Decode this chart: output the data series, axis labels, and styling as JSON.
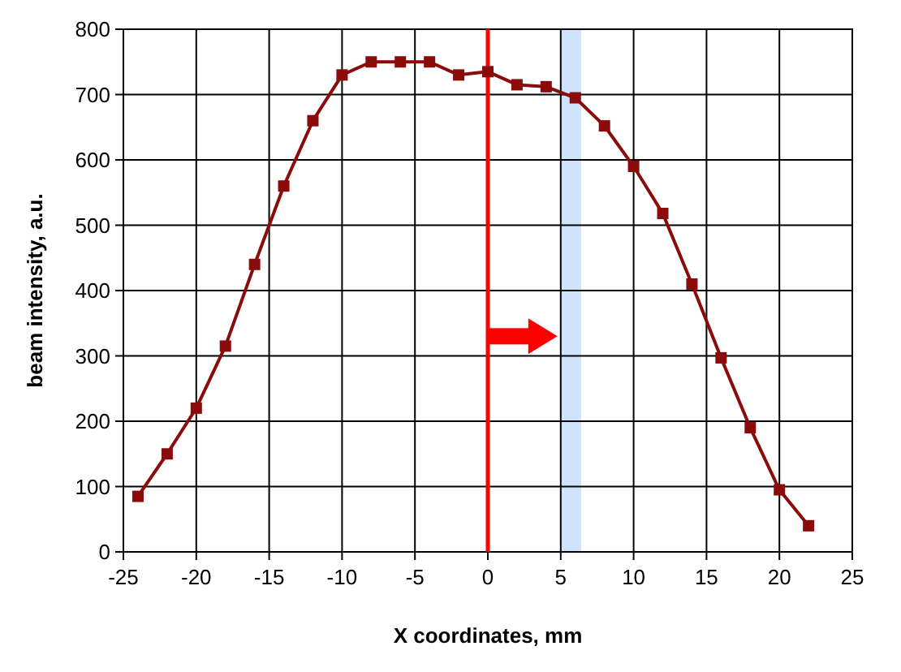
{
  "chart_data": {
    "type": "line",
    "xlabel": "X coordinates, mm",
    "ylabel": "beam intensity, a.u.",
    "x": [
      -24,
      -22,
      -20,
      -18,
      -16,
      -14,
      -12,
      -10,
      -8,
      -6,
      -4,
      -2,
      0,
      2,
      4,
      6,
      8,
      10,
      12,
      14,
      16,
      18,
      20,
      22
    ],
    "series": [
      {
        "color": "#8b0a0a",
        "values": [
          85,
          150,
          220,
          315,
          440,
          560,
          660,
          730,
          750,
          750,
          750,
          730,
          735,
          715,
          712,
          695,
          652,
          590,
          518,
          410,
          297,
          190,
          95,
          40
        ]
      }
    ],
    "xlim": [
      -25,
      25
    ],
    "xticks": [
      -25,
      -20,
      -15,
      -10,
      -5,
      0,
      5,
      10,
      15,
      20,
      25
    ],
    "ylim": [
      0,
      800
    ],
    "yticks": [
      0,
      100,
      200,
      300,
      400,
      500,
      600,
      700,
      800
    ],
    "grid": true,
    "marker": "square",
    "line_style": "solid",
    "ref_lines": [
      {
        "axis": "x",
        "value": 0,
        "color": "#ff0000"
      }
    ],
    "bands": [
      {
        "axis": "x",
        "from": 5,
        "to": 6.4,
        "color": "#cfe3ff"
      }
    ]
  }
}
